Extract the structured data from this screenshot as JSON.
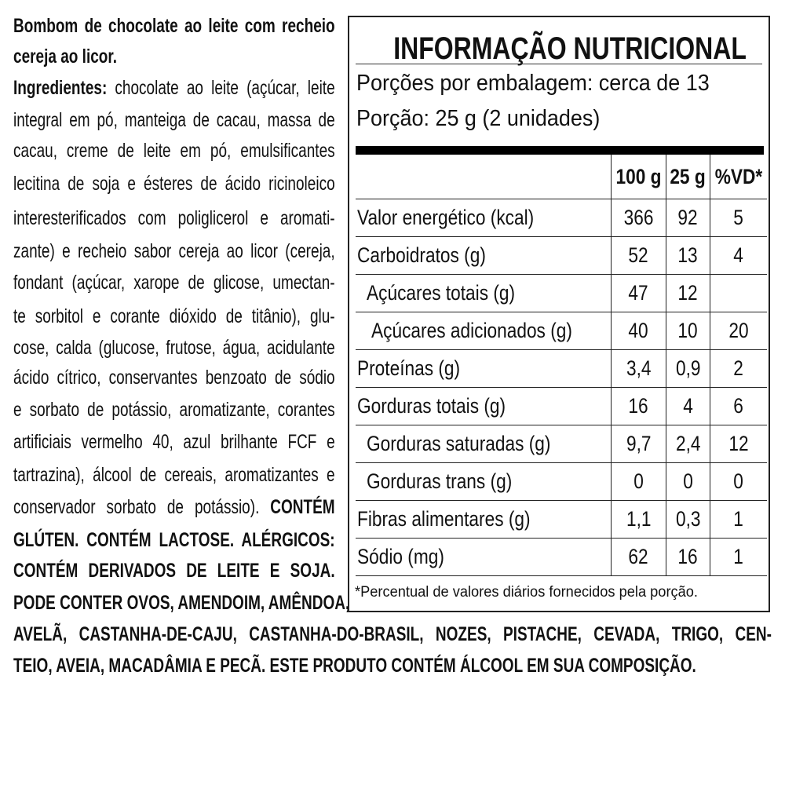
{
  "ingredients_text": {
    "lines": [
      [
        {
          "t": "Bombom de chocolate ao leite com recheio",
          "b": true
        }
      ],
      [
        {
          "t": "cereja ao licor.",
          "b": true
        }
      ],
      [
        {
          "t": "Ingredientes: ",
          "b": true
        },
        {
          "t": "chocolate ao leite (açúcar, leite",
          "b": false
        }
      ],
      [
        {
          "t": "integral em pó, manteiga de cacau, massa de",
          "b": false
        }
      ],
      [
        {
          "t": "cacau, creme de leite em pó, emulsificantes",
          "b": false
        }
      ],
      [
        {
          "t": "lecitina de soja e ésteres de ácido ricinoleico",
          "b": false
        }
      ],
      [
        {
          "t": "interesterificados com poliglicerol e aromati-",
          "b": false
        }
      ],
      [
        {
          "t": "zante) e recheio sabor cereja ao licor (cereja,",
          "b": false
        }
      ],
      [
        {
          "t": "fondant (açúcar, xarope de glicose, umectan-",
          "b": false
        }
      ],
      [
        {
          "t": "te sorbitol e corante dióxido de titânio), glu-",
          "b": false
        }
      ],
      [
        {
          "t": "cose, calda (glucose, frutose, água, acidulante",
          "b": false
        }
      ],
      [
        {
          "t": "ácido cítrico, conservantes benzoato de sódio",
          "b": false
        }
      ],
      [
        {
          "t": "e sorbato de potássio, aromatizante, corantes",
          "b": false
        }
      ],
      [
        {
          "t": "artificiais vermelho 40, azul brilhante FCF e",
          "b": false
        }
      ],
      [
        {
          "t": "tartrazina), álcool de cereais, aromatizantes e",
          "b": false
        }
      ],
      [
        {
          "t": "conservador sorbato de potássio). ",
          "b": false
        },
        {
          "t": "CONTÉM",
          "b": true
        }
      ],
      [
        {
          "t": "GLÚTEN. CONTÉM LACTOSE. ALÉRGICOS:",
          "b": true
        }
      ],
      [
        {
          "t": "CONTÉM DERIVADOS DE LEITE E SOJA.",
          "b": true
        }
      ],
      [
        {
          "t": "PODE CONTER OVOS, AMENDOIM, AMÊNDOA,",
          "b": true
        }
      ],
      [
        {
          "t": "AVELÃ, CASTANHA-DE-CAJU, CASTANHA-DO-BRASIL, NOZES, PISTACHE, CEVADA, TRIGO, CEN-",
          "b": true
        }
      ],
      [
        {
          "t": "TEIO, AVEIA, MACADÂMIA E PECÃ. ESTE PRODUTO CONTÉM ÁLCOOL EM SUA COMPOSIÇÃO.",
          "b": true
        }
      ]
    ]
  },
  "nutrition": {
    "title": "INFORMAÇÃO NUTRICIONAL",
    "servings_per_package": "Porções por embalagem: cerca de 13",
    "serving_size": "Porção: 25 g (2 unidades)",
    "columns": [
      "",
      "100 g",
      "25 g",
      "%VD*"
    ],
    "rows": [
      {
        "label": "Valor energético (kcal)",
        "indent": 0,
        "v100": "366",
        "v25": "92",
        "vd": "5"
      },
      {
        "label": "Carboidratos (g)",
        "indent": 0,
        "v100": "52",
        "v25": "13",
        "vd": "4"
      },
      {
        "label": "Açúcares totais (g)",
        "indent": 1,
        "v100": "47",
        "v25": "12",
        "vd": ""
      },
      {
        "label": "Açúcares adicionados (g)",
        "indent": 2,
        "v100": "40",
        "v25": "10",
        "vd": "20"
      },
      {
        "label": "Proteínas (g)",
        "indent": 0,
        "v100": "3,4",
        "v25": "0,9",
        "vd": "2"
      },
      {
        "label": "Gorduras totais (g)",
        "indent": 0,
        "v100": "16",
        "v25": "4",
        "vd": "6"
      },
      {
        "label": "Gorduras saturadas (g)",
        "indent": 1,
        "v100": "9,7",
        "v25": "2,4",
        "vd": "12"
      },
      {
        "label": "Gorduras trans (g)",
        "indent": 1,
        "v100": "0",
        "v25": "0",
        "vd": "0"
      },
      {
        "label": "Fibras alimentares (g)",
        "indent": 0,
        "v100": "1,1",
        "v25": "0,3",
        "vd": "1"
      },
      {
        "label": "Sódio (mg)",
        "indent": 0,
        "v100": "62",
        "v25": "16",
        "vd": "1"
      }
    ],
    "footnote": "*Percentual de valores diários fornecidos pela porção."
  }
}
